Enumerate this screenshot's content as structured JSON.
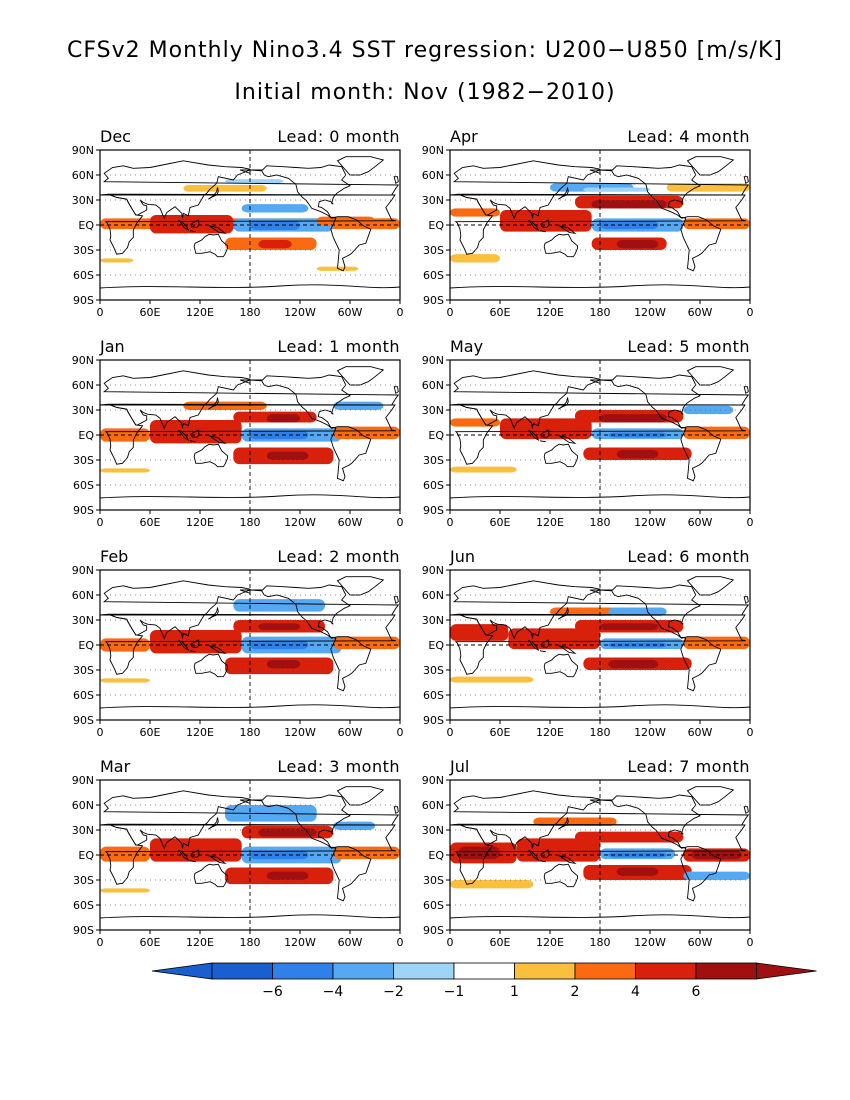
{
  "title": "CFSv2 Monthly Nino3.4 SST regression: U200−U850 [m/s/K]",
  "subtitle": "Initial month: Nov (1982−2010)",
  "lat_labels": [
    "90N",
    "60N",
    "30N",
    "EQ",
    "30S",
    "60S",
    "90S"
  ],
  "lon_labels": [
    "0",
    "60E",
    "120E",
    "180",
    "120W",
    "60W",
    "0"
  ],
  "panels": [
    {
      "month": "Dec",
      "lead": "Lead: 0 month"
    },
    {
      "month": "Apr",
      "lead": "Lead: 4 month"
    },
    {
      "month": "Jan",
      "lead": "Lead: 1 month"
    },
    {
      "month": "May",
      "lead": "Lead: 5 month"
    },
    {
      "month": "Feb",
      "lead": "Lead: 2 month"
    },
    {
      "month": "Jun",
      "lead": "Lead: 6 month"
    },
    {
      "month": "Mar",
      "lead": "Lead: 3 month"
    },
    {
      "month": "Jul",
      "lead": "Lead: 7 month"
    }
  ],
  "colorbar": {
    "labels": [
      "−6",
      "−4",
      "−2",
      "−1",
      "1",
      "2",
      "4",
      "6"
    ],
    "colors": [
      "#1a5fd0",
      "#2f80e8",
      "#55a8f2",
      "#9ed4f7",
      "#ffffff",
      "#fbbf3e",
      "#fa6a10",
      "#d8200a",
      "#a01010"
    ],
    "low_extend": "#1a5fd0",
    "high_extend": "#a01010"
  }
}
